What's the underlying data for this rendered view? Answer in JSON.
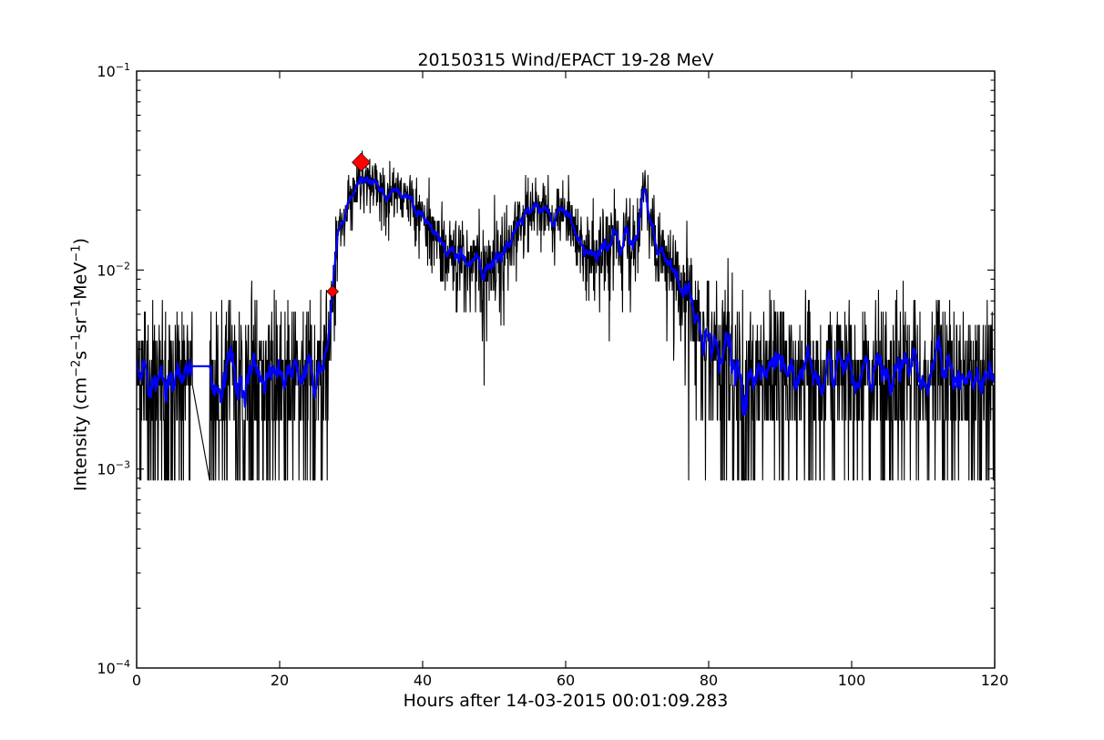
{
  "window": {
    "background": "#ffffff"
  },
  "chart_data": {
    "type": "line",
    "title": "20150315 Wind/EPACT 19-28 MeV",
    "xlabel": "Hours after 14-03-2015 00:01:09.283",
    "ylabel_plain": "Intensity (cm^-2 s^-1 sr^-1 MeV^-1)",
    "ylabel_segments": [
      {
        "t": "Intensity (cm"
      },
      {
        "t": "−2",
        "sup": true
      },
      {
        "t": "s"
      },
      {
        "t": "−1",
        "sup": true
      },
      {
        "t": "sr"
      },
      {
        "t": "−1",
        "sup": true
      },
      {
        "t": "MeV"
      },
      {
        "t": "−1",
        "sup": true
      },
      {
        "t": ")"
      }
    ],
    "x_ticks": [
      0,
      20,
      40,
      60,
      80,
      100,
      120
    ],
    "y_tick_exponents": [
      -1,
      -2,
      -3,
      -4
    ],
    "xlim": [
      0,
      120
    ],
    "ylim": [
      0.0001,
      0.1
    ],
    "y_scale": "log",
    "grid": false,
    "legend": "none",
    "colors": {
      "raw": "#000000",
      "smoothed": "#0000ff",
      "markers": "#ff0000",
      "frame": "#000000"
    },
    "series": [
      {
        "name": "raw-counts",
        "style": "noisy-line",
        "color": "#000000",
        "derived_from": "smoothed + poisson noise"
      },
      {
        "name": "smoothed",
        "style": "line",
        "color": "#0000ff",
        "control_points": [
          [
            0,
            0.0031
          ],
          [
            2,
            0.0029
          ],
          [
            4,
            0.0032
          ],
          [
            6,
            0.0033
          ],
          [
            7.8,
            0.0034
          ],
          [
            10.2,
            0.0024
          ],
          [
            11.5,
            0.0028
          ],
          [
            13,
            0.0031
          ],
          [
            15,
            0.0029
          ],
          [
            17,
            0.0031
          ],
          [
            19,
            0.0028
          ],
          [
            21,
            0.003
          ],
          [
            23,
            0.0029
          ],
          [
            25,
            0.0031
          ],
          [
            26.3,
            0.003
          ],
          [
            27.0,
            0.0042
          ],
          [
            27.4,
            0.0078
          ],
          [
            27.8,
            0.0115
          ],
          [
            28.3,
            0.0155
          ],
          [
            29,
            0.019
          ],
          [
            30,
            0.023
          ],
          [
            31,
            0.027
          ],
          [
            31.6,
            0.0295
          ],
          [
            32.3,
            0.026
          ],
          [
            33.3,
            0.028
          ],
          [
            34.3,
            0.025
          ],
          [
            35.3,
            0.0245
          ],
          [
            36.2,
            0.0255
          ],
          [
            37.2,
            0.023
          ],
          [
            38.5,
            0.021
          ],
          [
            40,
            0.018
          ],
          [
            41.5,
            0.0165
          ],
          [
            43,
            0.014
          ],
          [
            44.5,
            0.0125
          ],
          [
            46,
            0.0115
          ],
          [
            48,
            0.0105
          ],
          [
            50,
            0.0115
          ],
          [
            51.5,
            0.0125
          ],
          [
            53,
            0.015
          ],
          [
            54.3,
            0.019
          ],
          [
            55.3,
            0.022
          ],
          [
            56.3,
            0.02
          ],
          [
            57.3,
            0.018
          ],
          [
            58.3,
            0.019
          ],
          [
            59.3,
            0.0195
          ],
          [
            60.3,
            0.0185
          ],
          [
            61.3,
            0.016
          ],
          [
            62.3,
            0.0135
          ],
          [
            63.3,
            0.011
          ],
          [
            64.3,
            0.013
          ],
          [
            65.3,
            0.0145
          ],
          [
            66.5,
            0.015
          ],
          [
            67.8,
            0.014
          ],
          [
            69,
            0.0145
          ],
          [
            70.2,
            0.016
          ],
          [
            71,
            0.032
          ],
          [
            71.8,
            0.018
          ],
          [
            72.7,
            0.0125
          ],
          [
            74,
            0.0115
          ],
          [
            75.5,
            0.0098
          ],
          [
            77,
            0.0075
          ],
          [
            78.5,
            0.0058
          ],
          [
            80,
            0.0045
          ],
          [
            81.5,
            0.0039
          ],
          [
            83,
            0.0033
          ],
          [
            85,
            0.0027
          ],
          [
            86.5,
            0.003
          ],
          [
            88,
            0.0029
          ],
          [
            90,
            0.0031
          ],
          [
            92,
            0.0028
          ],
          [
            94,
            0.003
          ],
          [
            96,
            0.0029
          ],
          [
            98,
            0.0031
          ],
          [
            100,
            0.0029
          ],
          [
            102,
            0.003
          ],
          [
            104,
            0.0028
          ],
          [
            106,
            0.0031
          ],
          [
            108,
            0.0029
          ],
          [
            110,
            0.003
          ],
          [
            112,
            0.0029
          ],
          [
            114,
            0.0031
          ],
          [
            116,
            0.0028
          ],
          [
            118,
            0.003
          ],
          [
            120,
            0.003
          ]
        ]
      }
    ],
    "markers": [
      {
        "name": "onset",
        "x": 27.4,
        "y": 0.0078,
        "size": 13,
        "shape": "diamond",
        "color": "#ff0000"
      },
      {
        "name": "peak",
        "x": 31.4,
        "y": 0.0348,
        "size": 20,
        "shape": "diamond",
        "color": "#ff0000"
      }
    ],
    "noise_model": {
      "quantum": 0.00088,
      "seed": 11,
      "dt_hours": 0.05,
      "gap_hours": [
        7.8,
        10.2
      ],
      "smooth_window_points": 15
    }
  }
}
